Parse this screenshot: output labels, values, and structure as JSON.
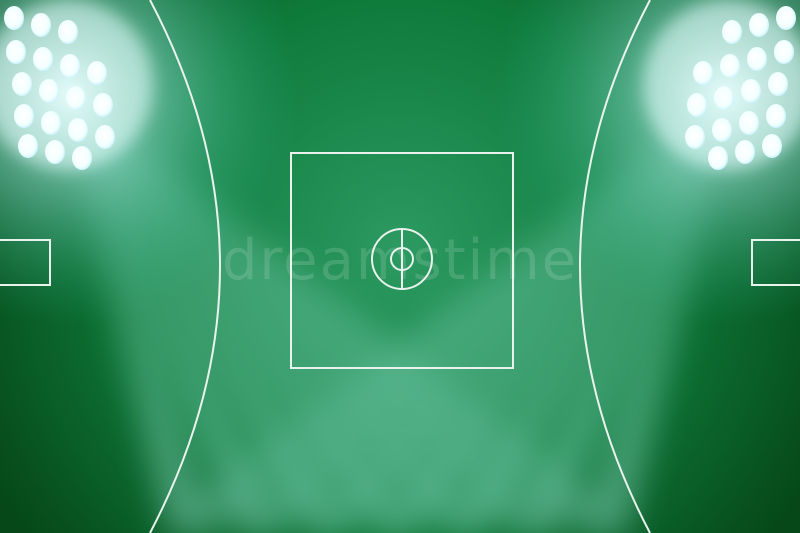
{
  "scene": {
    "type": "stadium-field-illustration",
    "colors": {
      "field_dark": "#084d22",
      "field_mid": "#0e7a3a",
      "field_light": "#3fbf8c",
      "lines": "#e9f2ec",
      "floodlight": "#ffffff",
      "glow": "#bff6ff"
    },
    "elements": [
      "left-floodlight-cluster",
      "right-floodlight-cluster",
      "oval-boundary-arcs",
      "center-square",
      "center-circle",
      "goal-boxes"
    ]
  },
  "watermark": {
    "text": "dreamstime"
  }
}
